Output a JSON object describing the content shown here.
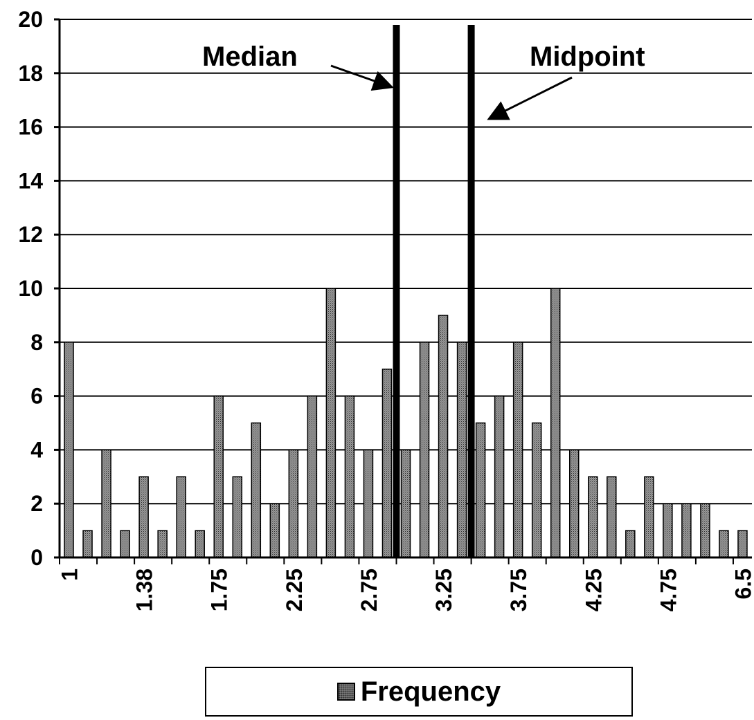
{
  "chart_data": {
    "type": "bar",
    "ylim": [
      0,
      20
    ],
    "y_ticks": [
      "0",
      "2",
      "4",
      "6",
      "8",
      "10",
      "12",
      "14",
      "16",
      "18",
      "20"
    ],
    "grid": true,
    "bar_color": "#8a8a8a",
    "x_tick_labels": [
      "1",
      "1.38",
      "1.75",
      "2.25",
      "2.75",
      "3.25",
      "3.75",
      "4.25",
      "4.75",
      "6.5"
    ],
    "series": [
      {
        "name": "Frequency",
        "values": [
          8,
          1,
          4,
          1,
          3,
          1,
          3,
          1,
          6,
          3,
          5,
          2,
          4,
          6,
          10,
          6,
          4,
          7,
          4,
          8,
          9,
          8,
          5,
          6,
          8,
          5,
          10,
          4,
          3,
          3,
          1,
          3,
          2,
          2,
          2,
          1,
          1
        ]
      }
    ],
    "annotations": [
      {
        "label": "Median",
        "between_bars": [
          17,
          18
        ]
      },
      {
        "label": "Midpoint",
        "between_bars": [
          21,
          22
        ]
      }
    ],
    "legend": "bottom"
  }
}
